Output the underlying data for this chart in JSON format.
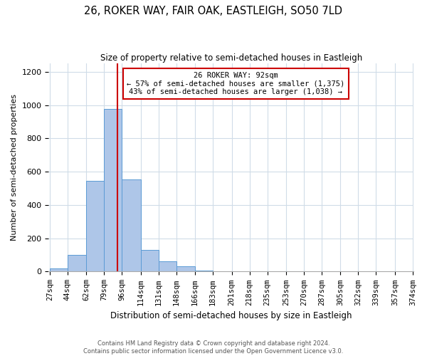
{
  "title": "26, ROKER WAY, FAIR OAK, EASTLEIGH, SO50 7LD",
  "subtitle": "Size of property relative to semi-detached houses in Eastleigh",
  "xlabel": "Distribution of semi-detached houses by size in Eastleigh",
  "ylabel": "Number of semi-detached properties",
  "tick_labels": [
    "27sqm",
    "44sqm",
    "62sqm",
    "79sqm",
    "96sqm",
    "114sqm",
    "131sqm",
    "148sqm",
    "166sqm",
    "183sqm",
    "201sqm",
    "218sqm",
    "235sqm",
    "253sqm",
    "270sqm",
    "287sqm",
    "305sqm",
    "322sqm",
    "339sqm",
    "357sqm",
    "374sqm"
  ],
  "bar_values": [
    20,
    100,
    545,
    975,
    555,
    130,
    62,
    30,
    5,
    0,
    0,
    0,
    0,
    0,
    0,
    0,
    0,
    0,
    0,
    0
  ],
  "bar_color": "#aec6e8",
  "bar_edge_color": "#5b9bd5",
  "property_sqm": 92,
  "property_line_label": "26 ROKER WAY: 92sqm",
  "annotation_line1": "← 57% of semi-detached houses are smaller (1,375)",
  "annotation_line2": "43% of semi-detached houses are larger (1,038) →",
  "annotation_box_color": "#ffffff",
  "annotation_box_edge_color": "#cc0000",
  "ylim": [
    0,
    1250
  ],
  "yticks": [
    0,
    200,
    400,
    600,
    800,
    1000,
    1200
  ],
  "footer_line1": "Contains HM Land Registry data © Crown copyright and database right 2024.",
  "footer_line2": "Contains public sector information licensed under the Open Government Licence v3.0.",
  "background_color": "#ffffff",
  "grid_color": "#d0dce8"
}
